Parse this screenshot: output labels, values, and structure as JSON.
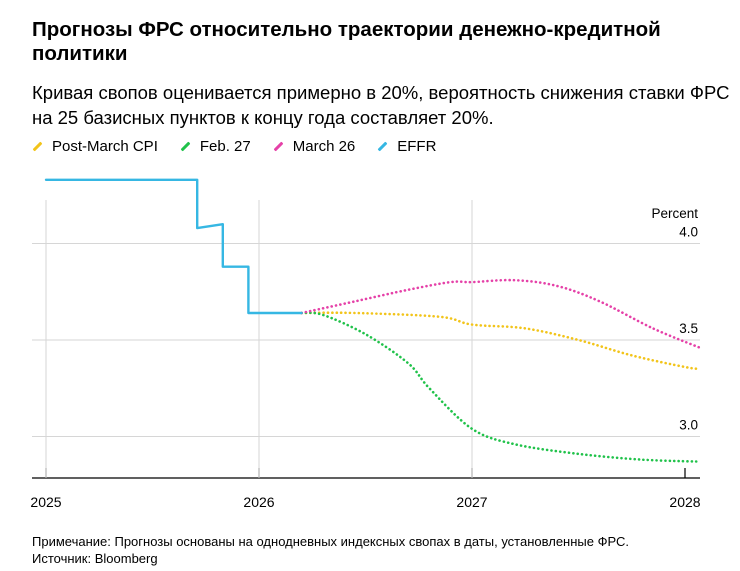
{
  "title": "Прогнозы ФРС относительно траектории денежно-кредитной политики",
  "subtitle": "Кривая свопов оценивается примерно в 20%, вероятность снижения ставки ФРС на 25 базисных пунктов к концу года составляет 20%.",
  "note": "Примечание: Прогнозы основаны на однодневных индексных свопах в даты, установленные ФРС.",
  "source": "Источник: Bloomberg",
  "chart_data": {
    "type": "line",
    "xlabel": "",
    "ylabel": "Percent",
    "x_ticks": [
      "2025",
      "2026",
      "2027",
      "2028"
    ],
    "y_ticks": [
      {
        "value": 4.0,
        "label": "4.0"
      },
      {
        "value": 3.5,
        "label": "3.5"
      },
      {
        "value": 3.0,
        "label": "3.0"
      }
    ],
    "xlim": [
      2025.0,
      2028.1
    ],
    "ylim": [
      2.76,
      4.35
    ],
    "legend": "top-left",
    "grid": "horizontal",
    "series": [
      {
        "name": "Post-March CPI",
        "color": "#f2c41a",
        "style": "dotted",
        "x": [
          2026.2,
          2026.45,
          2026.85,
          2027.0,
          2027.25,
          2027.5,
          2027.75,
          2028.0,
          2028.07
        ],
        "y": [
          3.64,
          3.64,
          3.62,
          3.58,
          3.56,
          3.5,
          3.42,
          3.36,
          3.35
        ]
      },
      {
        "name": "Feb. 27",
        "color": "#20c24a",
        "style": "dotted",
        "x": [
          2026.2,
          2026.3,
          2026.5,
          2026.7,
          2026.8,
          2027.0,
          2027.2,
          2027.5,
          2027.8,
          2028.07
        ],
        "y": [
          3.64,
          3.63,
          3.53,
          3.38,
          3.25,
          3.04,
          2.96,
          2.91,
          2.88,
          2.87
        ]
      },
      {
        "name": "March 26",
        "color": "#e541a8",
        "style": "dotted",
        "x": [
          2026.2,
          2026.45,
          2026.7,
          2026.9,
          2027.0,
          2027.2,
          2027.4,
          2027.6,
          2027.85,
          2028.07
        ],
        "y": [
          3.64,
          3.7,
          3.76,
          3.8,
          3.8,
          3.81,
          3.78,
          3.7,
          3.56,
          3.46
        ]
      },
      {
        "name": "EFFR",
        "color": "#36b7e3",
        "style": "solid",
        "step": true,
        "x": [
          2025.0,
          2025.71,
          2025.71,
          2025.83,
          2025.83,
          2025.95,
          2025.95,
          2026.2
        ],
        "y": [
          4.33,
          4.33,
          4.08,
          4.1,
          3.88,
          3.88,
          3.64,
          3.64
        ]
      }
    ]
  }
}
